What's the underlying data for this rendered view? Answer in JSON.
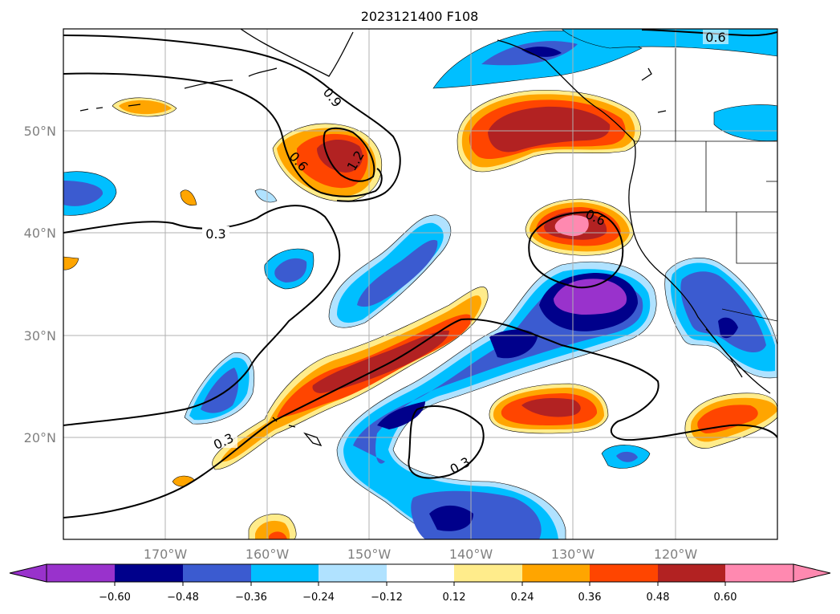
{
  "title": "2023121400 F108",
  "map": {
    "lat_labels": [
      "50°N",
      "40°N",
      "30°N",
      "20°N"
    ],
    "lon_labels": [
      "170°W",
      "160°W",
      "150°W",
      "140°W",
      "130°W",
      "120°W"
    ],
    "lat_lines": [
      50,
      40,
      30,
      20
    ],
    "lon_lines": [
      -170,
      -160,
      -150,
      -140,
      -130,
      -120
    ],
    "lon_range": [
      -180,
      -110
    ],
    "lat_range": [
      10,
      60
    ],
    "contour_labels": [
      "0.6",
      "0.9",
      "0.6",
      "1.2",
      "0.3",
      "0.6",
      "0.3",
      "0.3"
    ],
    "shading_colors": {
      "lt_-0.60": "#9932cc",
      "-0.60_-0.48": "#00008b",
      "-0.48_-0.36": "#3b5bd0",
      "-0.36_-0.24": "#00bfff",
      "-0.24_-0.12": "#b0e2ff",
      "0.12_0.24": "#ffec8b",
      "0.24_0.36": "#ffa500",
      "0.36_0.48": "#ff4500",
      "0.48_0.60": "#b22222",
      "gt_0.60": "#ff89b0"
    }
  },
  "colorbar": {
    "colors": [
      "#9932cc",
      "#00008b",
      "#3b5bd0",
      "#00bfff",
      "#b0e2ff",
      "#ffffff",
      "#ffec8b",
      "#ffa500",
      "#ff4500",
      "#b22222",
      "#ff89b0"
    ],
    "tick_labels": [
      "−0.60",
      "−0.48",
      "−0.36",
      "−0.24",
      "−0.12",
      "0.12",
      "0.24",
      "0.36",
      "0.48",
      "0.60"
    ]
  }
}
